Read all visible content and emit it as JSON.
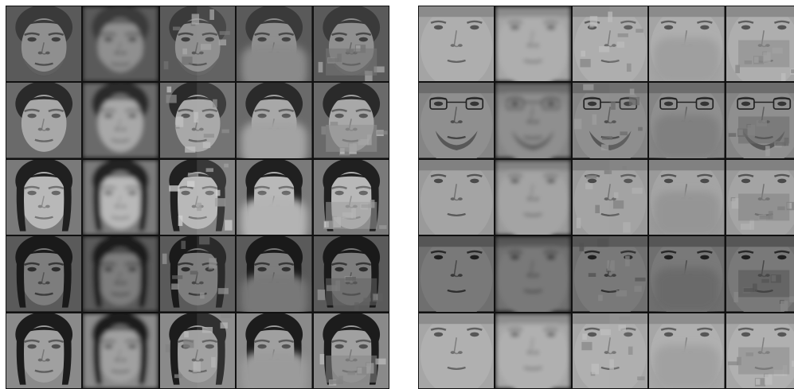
{
  "figure": {
    "panels": [
      {
        "id": "left",
        "rows": [
          {
            "tone": "#8f8f8f",
            "hair": "#3a3a3a",
            "bg": "#5a5a5a",
            "beard": true,
            "glasses": false,
            "variant": "male-a"
          },
          {
            "tone": "#a8a8a8",
            "hair": "#2a2a2a",
            "bg": "#6a6a6a",
            "beard": false,
            "glasses": false,
            "variant": "male-b"
          },
          {
            "tone": "#b8b8b8",
            "hair": "#202020",
            "bg": "#7a7a7a",
            "beard": false,
            "glasses": false,
            "variant": "female-a"
          },
          {
            "tone": "#7d7d7d",
            "hair": "#1a1a1a",
            "bg": "#5a5a5a",
            "beard": false,
            "glasses": false,
            "variant": "female-b"
          },
          {
            "tone": "#a0a0a0",
            "hair": "#1c1c1c",
            "bg": "#8a8a8a",
            "beard": false,
            "glasses": false,
            "variant": "female-c"
          }
        ]
      },
      {
        "id": "right",
        "rows": [
          {
            "tone": "#a4a4a4",
            "hair": "#7a7a7a",
            "bg": "#8a8a8a",
            "beard": false,
            "glasses": false,
            "variant": "closeup-a"
          },
          {
            "tone": "#858585",
            "hair": "#4a4a4a",
            "bg": "#6a6a6a",
            "beard": true,
            "glasses": true,
            "variant": "closeup-b"
          },
          {
            "tone": "#9a9a9a",
            "hair": "#6a6a6a",
            "bg": "#7a7a7a",
            "beard": false,
            "glasses": false,
            "variant": "closeup-c"
          },
          {
            "tone": "#6f6f6f",
            "hair": "#404040",
            "bg": "#555555",
            "beard": false,
            "glasses": false,
            "variant": "closeup-d"
          },
          {
            "tone": "#a6a6a6",
            "hair": "#4a4a4a",
            "bg": "#7a7a7a",
            "beard": false,
            "glasses": false,
            "variant": "closeup-e"
          }
        ]
      }
    ],
    "columns": [
      "original",
      "blurred",
      "patched",
      "masked-lower",
      "patched-lower"
    ]
  }
}
